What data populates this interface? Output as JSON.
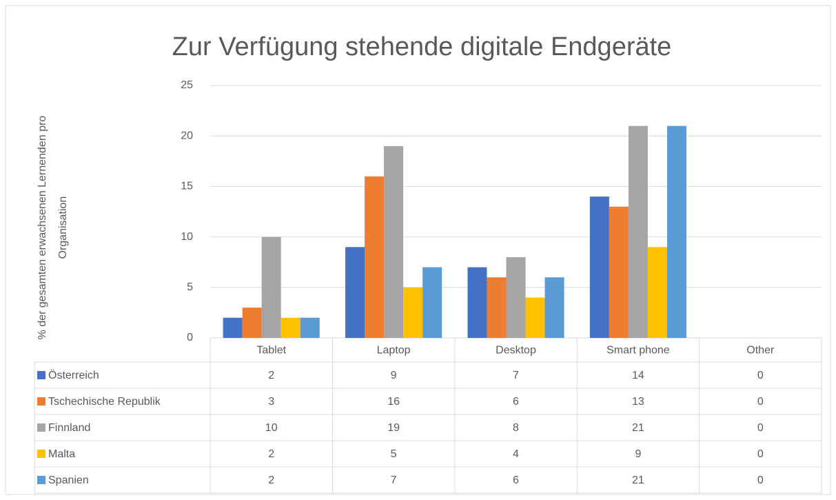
{
  "chart_data": {
    "type": "bar",
    "title": "Zur Verfügung stehende digitale Endgeräte",
    "ylabel": [
      "% der gesamten erwachsenen Lernenden  pro",
      "Organisation"
    ],
    "categories": [
      "Tablet",
      "Laptop",
      "Desktop",
      "Smart phone",
      "Other"
    ],
    "series": [
      {
        "name": "Österreich",
        "color": "#4472c4",
        "values": [
          2,
          9,
          7,
          14,
          0
        ]
      },
      {
        "name": "Tschechische Republik",
        "color": "#ed7d31",
        "values": [
          3,
          16,
          6,
          13,
          0
        ]
      },
      {
        "name": "Finnland",
        "color": "#a5a5a5",
        "values": [
          10,
          19,
          8,
          21,
          0
        ]
      },
      {
        "name": "Malta",
        "color": "#ffc000",
        "values": [
          2,
          5,
          4,
          9,
          0
        ]
      },
      {
        "name": "Spanien",
        "color": "#5b9bd5",
        "values": [
          2,
          7,
          6,
          21,
          0
        ]
      }
    ],
    "ylim": [
      0,
      25
    ],
    "yticks": [
      0,
      5,
      10,
      15,
      20,
      25
    ],
    "grid": true,
    "data_table": true
  }
}
